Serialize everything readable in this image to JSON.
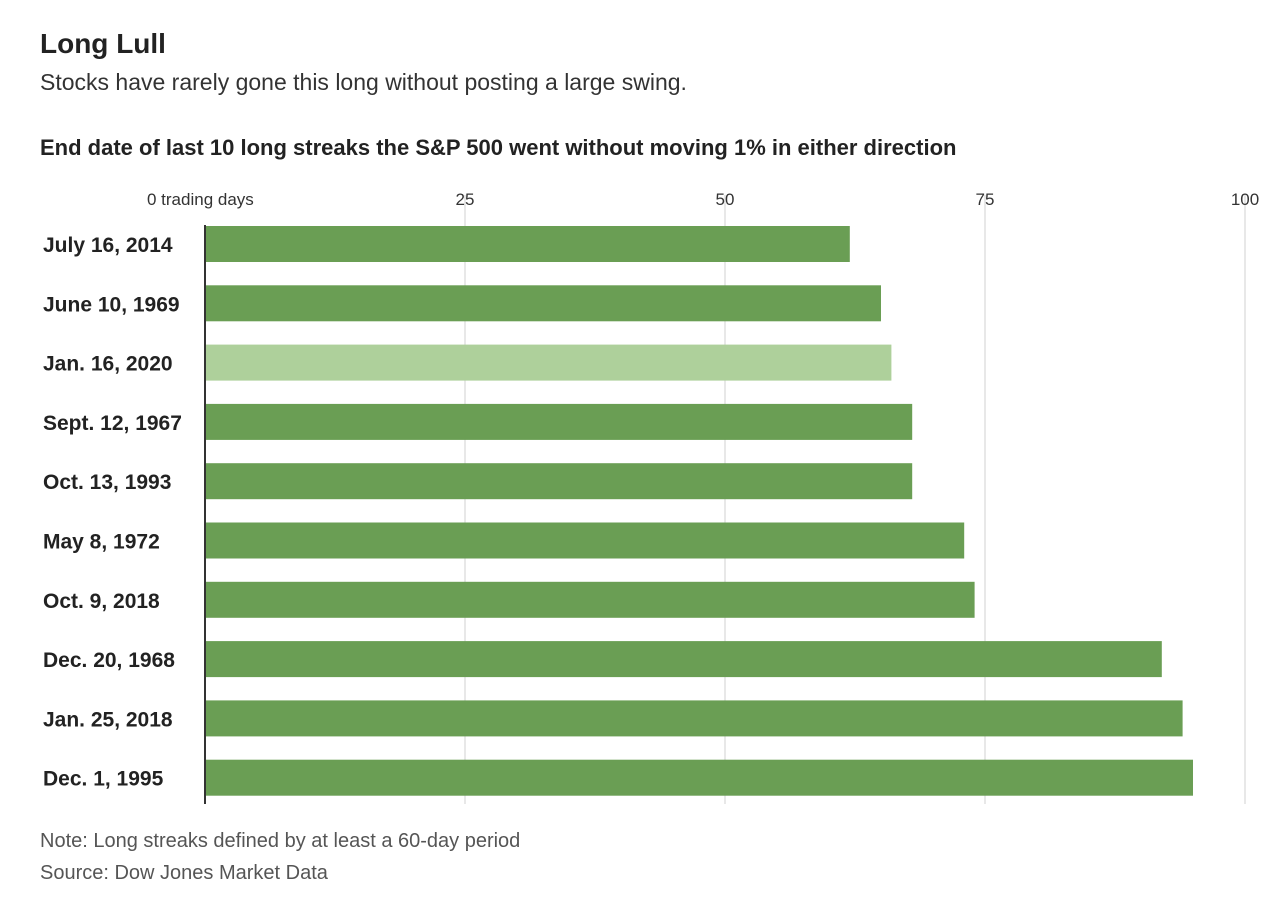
{
  "header": {
    "title": "Long Lull",
    "subtitle": "Stocks have rarely gone this long without posting a large swing."
  },
  "chart_data": {
    "type": "bar",
    "orientation": "horizontal",
    "title": "End date of last 10 long streaks the S&P 500 went without moving 1% in either direction",
    "categories": [
      "July 16, 2014",
      "June 10, 1969",
      "Jan. 16, 2020",
      "Sept. 12, 1967",
      "Oct. 13, 1993",
      "May 8, 1972",
      "Oct. 9, 2018",
      "Dec. 20, 1968",
      "Jan. 25, 2018",
      "Dec. 1, 1995"
    ],
    "values": [
      62,
      65,
      66,
      68,
      68,
      73,
      74,
      92,
      94,
      95
    ],
    "highlight_index": 2,
    "xlim": [
      0,
      100
    ],
    "xticks": [
      0,
      25,
      50,
      75,
      100
    ],
    "xtick_labels": [
      "0 trading days",
      "25",
      "50",
      "75",
      "100"
    ],
    "axis_position": "top",
    "grid": true,
    "colors": {
      "bar": "#6a9e54",
      "highlight": "#aed09b",
      "grid": "#e0e0e0",
      "axis": "#333333"
    }
  },
  "footer": {
    "note": "Note: Long streaks defined by at least a 60-day period",
    "source": "Source: Dow Jones Market Data"
  }
}
